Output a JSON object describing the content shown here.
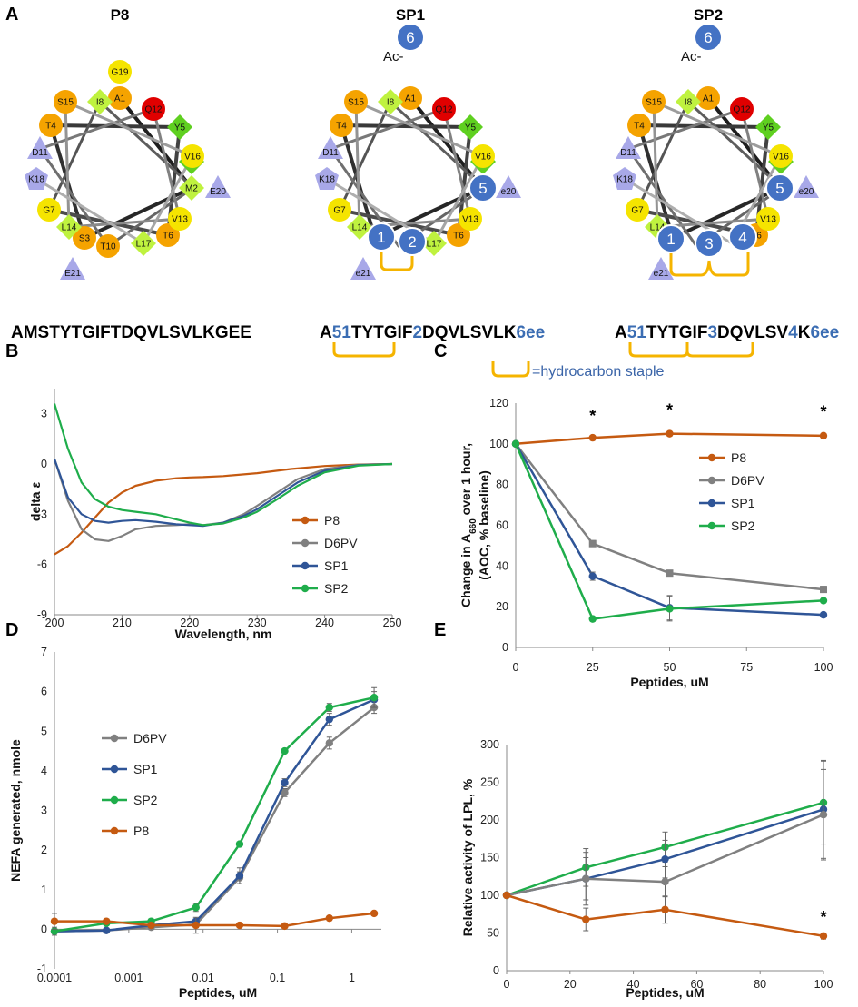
{
  "panels": {
    "A": "A",
    "B": "B",
    "C": "C",
    "D": "D",
    "E": "E"
  },
  "colors": {
    "P8": "#c55a11",
    "D6PV": "#808080",
    "SP1": "#2f5597",
    "SP2": "#1fad4b",
    "staple": "#f5b400",
    "wheel_blue": "#4472c4",
    "wheel_orange": "#f5a300",
    "wheel_yellow": "#f5e400",
    "wheel_red": "#e00000",
    "wheel_green": "#5fd020",
    "wheel_lightgreen": "#bff23f",
    "wheel_lavender": "#a8a8e8"
  },
  "wheels": [
    {
      "title": "P8",
      "residues": [
        "A1",
        "M2",
        "S3",
        "T4",
        "Y5",
        "T6",
        "G7",
        "I8",
        "F9",
        "T10",
        "D11",
        "Q12",
        "V13",
        "L14",
        "S15",
        "V16",
        "L17",
        "K18",
        "G19",
        "E20",
        "E21"
      ],
      "sequence_parts": [
        {
          "text": "AMSTYTGIFTDQVLSVLKGEE",
          "blue": false
        }
      ]
    },
    {
      "title": "SP1",
      "ac_label": "Ac-",
      "badges": [
        "1",
        "2",
        "5",
        "6"
      ],
      "residues": [
        "A1",
        "T4",
        "Y5",
        "T6",
        "G7",
        "I8",
        "F9",
        "D11",
        "Q12",
        "V13",
        "L14",
        "S15",
        "V16",
        "L17",
        "K18",
        "e20",
        "e21"
      ],
      "sequence_parts": [
        {
          "text": "A",
          "blue": false
        },
        {
          "text": "51",
          "blue": true
        },
        {
          "text": "TYTGIF",
          "blue": false
        },
        {
          "text": "2",
          "blue": true
        },
        {
          "text": "DQVLSVLK",
          "blue": false
        },
        {
          "text": "6ee",
          "blue": true
        }
      ]
    },
    {
      "title": "SP2",
      "ac_label": "Ac-",
      "badges": [
        "1",
        "3",
        "4",
        "5",
        "6"
      ],
      "residues": [
        "A1",
        "T4",
        "Y5",
        "T6",
        "G7",
        "I8",
        "F9",
        "D11",
        "Q12",
        "V13",
        "L14",
        "S15",
        "V16",
        "K18",
        "e20",
        "e21"
      ],
      "sequence_parts": [
        {
          "text": "A",
          "blue": false
        },
        {
          "text": "51",
          "blue": true
        },
        {
          "text": "TYTGIF",
          "blue": false
        },
        {
          "text": "3",
          "blue": true
        },
        {
          "text": "DQVLSV",
          "blue": false
        },
        {
          "text": "4",
          "blue": true
        },
        {
          "text": "K",
          "blue": false
        },
        {
          "text": "6ee",
          "blue": true
        }
      ]
    }
  ],
  "staple_legend": "=hydrocarbon staple",
  "chart_data": [
    {
      "panel": "B",
      "type": "line",
      "xlabel": "Wavelength, nm",
      "ylabel": "delta ε",
      "xlim": [
        200,
        250
      ],
      "ylim": [
        -9,
        4.5
      ],
      "xticks": [
        "200",
        "210",
        "220",
        "230",
        "240",
        "250"
      ],
      "yticks": [
        "3",
        "0",
        "-3",
        "-6",
        "-9"
      ],
      "legend": "right",
      "series": [
        {
          "name": "P8",
          "x": [
            200,
            202,
            204,
            206,
            208,
            210,
            212,
            215,
            218,
            220,
            222,
            225,
            230,
            235,
            240,
            245,
            250
          ],
          "y": [
            -5.4,
            -4.9,
            -4.1,
            -3.2,
            -2.3,
            -1.7,
            -1.3,
            -1.0,
            -0.85,
            -0.8,
            -0.78,
            -0.72,
            -0.55,
            -0.3,
            -0.12,
            -0.03,
            0
          ]
        },
        {
          "name": "D6PV",
          "x": [
            200,
            202,
            204,
            206,
            208,
            210,
            212,
            215,
            218,
            220,
            222,
            225,
            228,
            230,
            233,
            236,
            240,
            245,
            250
          ],
          "y": [
            0.3,
            -2.2,
            -3.9,
            -4.5,
            -4.6,
            -4.3,
            -3.9,
            -3.7,
            -3.65,
            -3.6,
            -3.65,
            -3.5,
            -3.0,
            -2.5,
            -1.7,
            -0.9,
            -0.3,
            -0.05,
            0
          ]
        },
        {
          "name": "SP1",
          "x": [
            200,
            202,
            204,
            206,
            208,
            210,
            212,
            215,
            218,
            220,
            222,
            225,
            228,
            230,
            233,
            236,
            240,
            245,
            250
          ],
          "y": [
            0.3,
            -2.0,
            -3.0,
            -3.4,
            -3.5,
            -3.4,
            -3.35,
            -3.45,
            -3.6,
            -3.65,
            -3.7,
            -3.5,
            -3.1,
            -2.7,
            -1.9,
            -1.1,
            -0.4,
            -0.07,
            0
          ]
        },
        {
          "name": "SP2",
          "x": [
            200,
            202,
            204,
            206,
            208,
            210,
            212,
            215,
            218,
            220,
            222,
            225,
            228,
            230,
            233,
            236,
            240,
            245,
            250
          ],
          "y": [
            3.6,
            0.9,
            -1.1,
            -2.1,
            -2.55,
            -2.75,
            -2.85,
            -3.0,
            -3.3,
            -3.5,
            -3.65,
            -3.55,
            -3.2,
            -2.85,
            -2.1,
            -1.3,
            -0.5,
            -0.1,
            0
          ]
        }
      ]
    },
    {
      "panel": "C",
      "type": "line",
      "xlabel": "Peptides, uM",
      "ylabel_line1": "Change in A",
      "ylabel_sub": "660",
      "ylabel_line1b": " over 1 hour,",
      "ylabel_line2": "(AOC, % baseline)",
      "xlim": [
        0,
        100
      ],
      "ylim": [
        0,
        120
      ],
      "xticks": [
        "0",
        "25",
        "50",
        "75",
        "100"
      ],
      "yticks": [
        "0",
        "20",
        "40",
        "60",
        "80",
        "100",
        "120"
      ],
      "legend": "right",
      "annotations": [
        "*",
        "*",
        "*"
      ],
      "series": [
        {
          "name": "P8",
          "x": [
            0,
            25,
            50,
            100
          ],
          "y": [
            100,
            103,
            105,
            104
          ],
          "err": [
            0,
            0,
            0,
            0
          ]
        },
        {
          "name": "D6PV",
          "x": [
            0,
            25,
            50,
            100
          ],
          "y": [
            100,
            51,
            36.5,
            28.5
          ],
          "err": [
            0,
            1.5,
            1,
            1.5
          ]
        },
        {
          "name": "SP1",
          "x": [
            0,
            25,
            50,
            100
          ],
          "y": [
            100,
            35,
            19.5,
            16
          ],
          "err": [
            0,
            2,
            6,
            0
          ]
        },
        {
          "name": "SP2",
          "x": [
            0,
            25,
            50,
            100
          ],
          "y": [
            100,
            14,
            19,
            23
          ],
          "err": [
            0,
            0,
            6,
            0
          ]
        }
      ]
    },
    {
      "panel": "D",
      "type": "line",
      "xscale": "log",
      "xlabel": "Peptides, uM",
      "ylabel": "NEFA generated, nmole",
      "xlim": [
        0.0001,
        2.5
      ],
      "ylim": [
        -1,
        7
      ],
      "xticks": [
        "0.0001",
        "0.001",
        "0.01",
        "0.1",
        "1"
      ],
      "yticks": [
        "-1",
        "0",
        "1",
        "2",
        "3",
        "4",
        "5",
        "6",
        "7"
      ],
      "legend": "top-left",
      "series": [
        {
          "name": "D6PV",
          "x": [
            0.0001,
            0.0005,
            0.002,
            0.008,
            0.031,
            0.125,
            0.5,
            2
          ],
          "y": [
            -0.05,
            -0.03,
            0.05,
            0.12,
            1.3,
            3.45,
            4.7,
            5.6
          ],
          "err": [
            0.1,
            0.05,
            0.05,
            0.08,
            0.15,
            0.1,
            0.15,
            0.15
          ]
        },
        {
          "name": "SP1",
          "x": [
            0.0001,
            0.0005,
            0.002,
            0.008,
            0.031,
            0.125,
            0.5,
            2
          ],
          "y": [
            -0.05,
            -0.03,
            0.1,
            0.2,
            1.35,
            3.7,
            5.3,
            5.8
          ],
          "err": [
            0.05,
            0.05,
            0.05,
            0.05,
            0.2,
            0.1,
            0.15,
            0.2
          ]
        },
        {
          "name": "SP2",
          "x": [
            0.0001,
            0.0005,
            0.002,
            0.008,
            0.031,
            0.125,
            0.5,
            2
          ],
          "y": [
            -0.05,
            0.15,
            0.2,
            0.55,
            2.15,
            4.5,
            5.6,
            5.85
          ],
          "err": [
            0.05,
            0.05,
            0.05,
            0.1,
            0.05,
            0.05,
            0.1,
            0.25
          ]
        },
        {
          "name": "P8",
          "x": [
            0.0001,
            0.0005,
            0.002,
            0.008,
            0.031,
            0.125,
            0.5,
            2
          ],
          "y": [
            0.2,
            0.2,
            0.1,
            0.1,
            0.1,
            0.08,
            0.28,
            0.4
          ],
          "err": [
            0.2,
            0.05,
            0.05,
            0.2,
            0.05,
            0.03,
            0.05,
            0.05
          ]
        }
      ]
    },
    {
      "panel": "E",
      "type": "line",
      "xlabel": "Peptides, uM",
      "ylabel": "Relative activity of LPL, %",
      "xlim": [
        0,
        100
      ],
      "ylim": [
        0,
        300
      ],
      "xticks": [
        "0",
        "20",
        "40",
        "60",
        "80",
        "100"
      ],
      "yticks": [
        "0",
        "50",
        "100",
        "150",
        "200",
        "250",
        "300"
      ],
      "legend": "none",
      "annotations": [
        "*"
      ],
      "series": [
        {
          "name": "SP2",
          "x": [
            0,
            25,
            50,
            100
          ],
          "y": [
            100,
            137,
            164,
            223
          ],
          "err": [
            0,
            25,
            20,
            55
          ]
        },
        {
          "name": "SP1",
          "x": [
            0,
            25,
            50,
            100
          ],
          "y": [
            100,
            122,
            148,
            214
          ],
          "err": [
            0,
            28,
            25,
            65
          ]
        },
        {
          "name": "D6PV",
          "x": [
            0,
            25,
            50,
            100
          ],
          "y": [
            100,
            122,
            118,
            207
          ],
          "err": [
            0,
            35,
            20,
            60
          ]
        },
        {
          "name": "P8",
          "x": [
            0,
            25,
            50,
            100
          ],
          "y": [
            100,
            68,
            81,
            46
          ],
          "err": [
            0,
            15,
            18,
            4
          ]
        }
      ]
    }
  ]
}
